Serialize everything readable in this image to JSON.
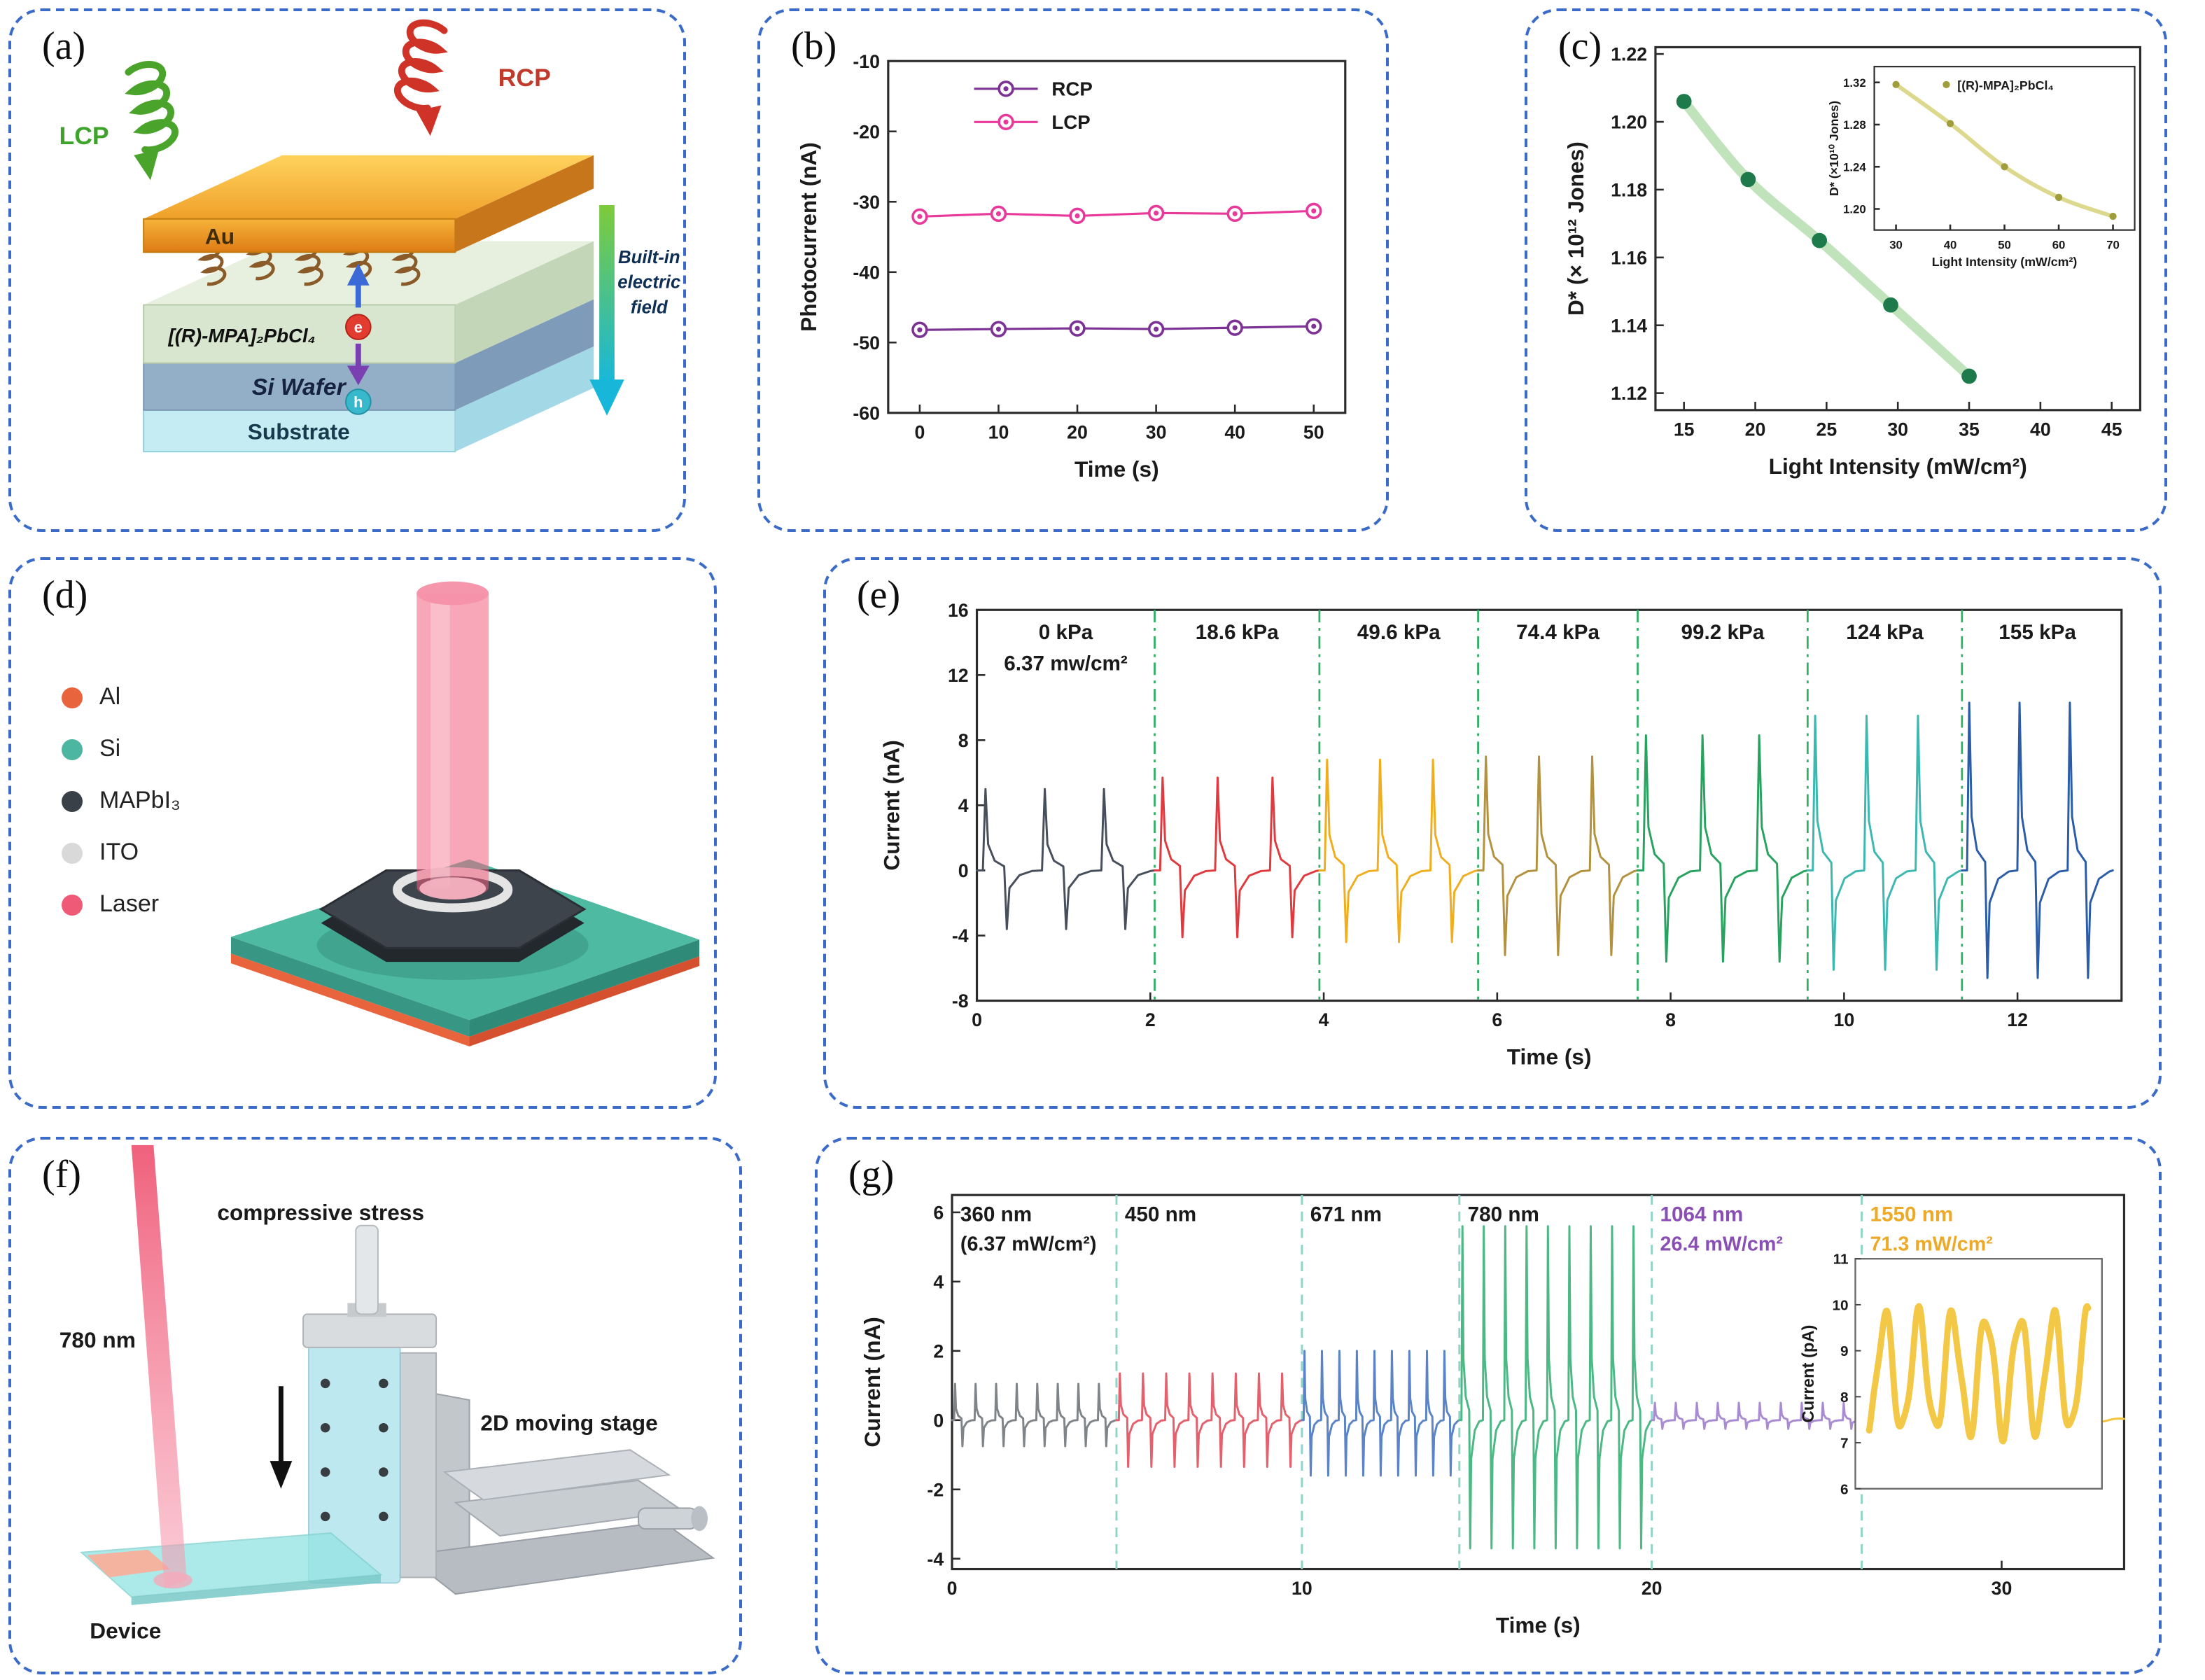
{
  "panels": {
    "a": "(a)",
    "b": "(b)",
    "c": "(c)",
    "d": "(d)",
    "e": "(e)",
    "f": "(f)",
    "g": "(g)"
  },
  "panel_a": {
    "lcp": "LCP",
    "rcp": "RCP",
    "au": "Au",
    "crystal": "[(R)-MPA]₂PbCl₄",
    "si_wafer": "Si Wafer",
    "substrate": "Substrate",
    "field_line1": "Built-in",
    "field_line2": "electric",
    "field_line3": "field",
    "electron": "e",
    "hole": "h",
    "lcp_color": "#3fa32b",
    "rcp_color": "#c0392b"
  },
  "panel_d": {
    "legend": [
      {
        "label": "Al",
        "color": "#e8643c"
      },
      {
        "label": "Si",
        "color": "#4db6a0"
      },
      {
        "label": "MAPbI₃",
        "color": "#3a4047"
      },
      {
        "label": "ITO",
        "color": "#d9d9d9"
      },
      {
        "label": "Laser",
        "color": "#ef5a76"
      }
    ]
  },
  "panel_f": {
    "laser": "780 nm",
    "stress": "compressive stress",
    "stage": "2D moving stage",
    "device": "Device"
  },
  "chart_data": [
    {
      "id": "b",
      "type": "line",
      "xlabel": "Time (s)",
      "ylabel": "Photocurrent (nA)",
      "xlim": [
        -4,
        54
      ],
      "ylim": [
        -60,
        -10
      ],
      "x_ticks": [
        "0",
        "10",
        "20",
        "30",
        "40",
        "50"
      ],
      "y_ticks": [
        "-10",
        "-20",
        "-30",
        "-40",
        "-50",
        "-60"
      ],
      "x": [
        0,
        10,
        20,
        30,
        40,
        50
      ],
      "series": [
        {
          "name": "RCP",
          "color": "#7b3294",
          "values": [
            -48.2,
            -48.1,
            -48.0,
            -48.1,
            -47.9,
            -47.7
          ]
        },
        {
          "name": "LCP",
          "color": "#e8399b",
          "values": [
            -32.1,
            -31.7,
            -32.0,
            -31.6,
            -31.7,
            -31.3
          ]
        }
      ],
      "legend_position": "top-left",
      "grid": false
    },
    {
      "id": "c",
      "type": "scatter",
      "xlabel": "Light Intensity (mW/cm²)",
      "ylabel": "D* (× 10¹² Jones)",
      "xlim": [
        13,
        47
      ],
      "ylim": [
        1.115,
        1.222
      ],
      "x_ticks": [
        "15",
        "20",
        "25",
        "30",
        "35",
        "40",
        "45"
      ],
      "y_ticks": [
        "1.12",
        "1.14",
        "1.16",
        "1.18",
        "1.20",
        "1.22"
      ],
      "points": [
        [
          15,
          1.206
        ],
        [
          19.5,
          1.183
        ],
        [
          24.5,
          1.165
        ],
        [
          29.5,
          1.146
        ],
        [
          35,
          1.125
        ]
      ],
      "point_color": "#1e7a4a",
      "line_color": "#b9e0b4",
      "inset": {
        "legend": "[(R)-MPA]₂PbCl₄",
        "xlabel": "Light Intensity (mW/cm²)",
        "ylabel": "D* (×10¹⁰ Jones)",
        "xlim": [
          26,
          74
        ],
        "ylim": [
          1.18,
          1.335
        ],
        "x_ticks": [
          "30",
          "40",
          "50",
          "60",
          "70"
        ],
        "y_ticks": [
          "1.20",
          "1.24",
          "1.28",
          "1.32"
        ],
        "points": [
          [
            30,
            1.318
          ],
          [
            40,
            1.281
          ],
          [
            50,
            1.24
          ],
          [
            60,
            1.211
          ],
          [
            70,
            1.193
          ]
        ],
        "point_color": "#9f9d3c",
        "line_color": "#dcd98f"
      }
    },
    {
      "id": "e",
      "type": "line",
      "xlabel": "Time (s)",
      "ylabel": "Current (nA)",
      "xlim": [
        0,
        13.2
      ],
      "ylim": [
        -8,
        16
      ],
      "x_ticks": [
        "0",
        "2",
        "4",
        "6",
        "8",
        "10",
        "12"
      ],
      "y_ticks": [
        "-8",
        "-4",
        "0",
        "4",
        "8",
        "12",
        "16"
      ],
      "separator_color": "#2eaf62",
      "segments": [
        {
          "label": "0 kPa",
          "sublabel": "6.37 mw/cm²",
          "t0": 0,
          "t1": 2.05,
          "spikes": 3,
          "peak": 5.0,
          "neg": -3.6,
          "color": "#474f5c"
        },
        {
          "label": "18.6 kPa",
          "t0": 2.05,
          "t1": 3.95,
          "spikes": 3,
          "peak": 5.7,
          "neg": -4.1,
          "color": "#e03a3f"
        },
        {
          "label": "49.6 kPa",
          "t0": 3.95,
          "t1": 5.78,
          "spikes": 3,
          "peak": 6.8,
          "neg": -4.4,
          "color": "#f0ad1d"
        },
        {
          "label": "74.4 kPa",
          "t0": 5.78,
          "t1": 7.62,
          "spikes": 3,
          "peak": 7.0,
          "neg": -5.2,
          "color": "#b3923f"
        },
        {
          "label": "99.2 kPa",
          "t0": 7.62,
          "t1": 9.58,
          "spikes": 3,
          "peak": 8.3,
          "neg": -5.6,
          "color": "#27a35f"
        },
        {
          "label": "124 kPa",
          "t0": 9.58,
          "t1": 11.36,
          "spikes": 3,
          "peak": 9.5,
          "neg": -6.1,
          "color": "#3db8b0"
        },
        {
          "label": "155 kPa",
          "t0": 11.36,
          "t1": 13.1,
          "spikes": 3,
          "peak": 10.3,
          "neg": -6.6,
          "color": "#2b5ca8"
        }
      ]
    },
    {
      "id": "g",
      "type": "line",
      "xlabel": "Time (s)",
      "ylabel": "Current (nA)",
      "xlim": [
        0,
        33.5
      ],
      "ylim": [
        -4.3,
        6.5
      ],
      "x_ticks": [
        "0",
        "10",
        "20",
        "30"
      ],
      "y_ticks": [
        "-4",
        "-2",
        "0",
        "2",
        "4",
        "6"
      ],
      "separator_color": "#8fd4c8",
      "segments": [
        {
          "label": "360 nm",
          "sublabel": "(6.37 mW/cm²)",
          "label_color": "#1a1a1a",
          "t0": 0,
          "t1": 4.7,
          "spikes": 8,
          "peak": 1.05,
          "neg": -0.75,
          "color": "#7f8488"
        },
        {
          "label": "450 nm",
          "label_color": "#1a1a1a",
          "t0": 4.7,
          "t1": 10,
          "spikes": 8,
          "peak": 1.35,
          "neg": -1.35,
          "color": "#e4606d"
        },
        {
          "label": "671 nm",
          "label_color": "#1a1a1a",
          "t0": 10,
          "t1": 14.5,
          "spikes": 9,
          "peak": 2.0,
          "neg": -1.6,
          "color": "#5b84c8"
        },
        {
          "label": "780 nm",
          "label_color": "#1a1a1a",
          "t0": 14.5,
          "t1": 20,
          "spikes": 9,
          "peak": 5.6,
          "neg": -3.7,
          "color": "#4cb884"
        },
        {
          "label": "1064 nm",
          "sublabel": "26.4 mW/cm²",
          "label_color": "#8a4fb5",
          "t0": 20,
          "t1": 26,
          "spikes": 10,
          "peak": 0.5,
          "neg": -0.25,
          "color": "#a98bd3"
        },
        {
          "label": "1550 nm",
          "sublabel": "71.3 mW/cm²",
          "label_color": "#eda928",
          "t0": 26,
          "t1": 33.5,
          "spikes": 0,
          "peak": 0.05,
          "neg": 0,
          "color": "#f3c53d"
        }
      ],
      "inset": {
        "ylabel": "Current (pA)",
        "ylim": [
          6,
          11
        ],
        "y_ticks": [
          "6",
          "7",
          "8",
          "9",
          "10",
          "11"
        ],
        "wave_color": "#f3c53d",
        "wave_mid": 8.5,
        "wave_amp": 1.25,
        "cycles": 6.5
      }
    }
  ]
}
